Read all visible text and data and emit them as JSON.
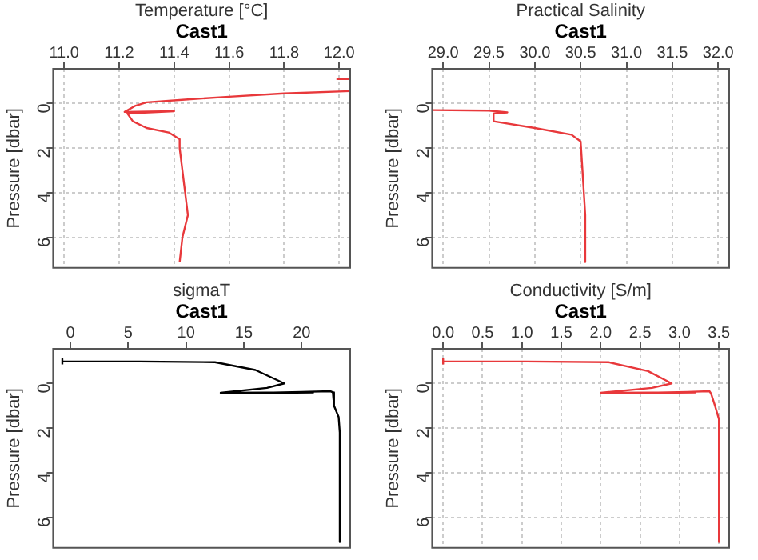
{
  "chart_data": [
    {
      "type": "line",
      "title": "Cast1",
      "xlabel": "Temperature [°C]",
      "ylabel": "Pressure [dbar]",
      "xlim": [
        10.96,
        12.04
      ],
      "xticks": [
        {
          "value": 11,
          "label": "11.0"
        },
        11.2,
        11.4,
        11.6,
        11.8,
        {
          "value": 12,
          "label": "12.0"
        }
      ],
      "ylim": [
        7.36,
        -1.55
      ],
      "yticks": [
        0,
        2,
        4,
        6
      ],
      "grid": true,
      "series": [
        {
          "color": "#e8383b",
          "x": [
            11.99,
            12.04
          ],
          "values": [
            -1.09,
            -1.09
          ]
        },
        {
          "color": "#e8383b",
          "x": [
            12.04,
            11.8,
            11.6,
            11.45,
            11.3,
            11.26,
            11.22,
            11.4,
            11.23,
            11.25,
            11.3,
            11.38,
            11.42,
            11.42,
            11.44,
            11.45,
            11.43,
            11.42
          ],
          "values": [
            -0.55,
            -0.45,
            -0.3,
            -0.18,
            -0.05,
            0.1,
            0.38,
            0.35,
            0.45,
            0.8,
            1.1,
            1.3,
            1.6,
            2,
            4,
            5,
            6,
            7.1
          ]
        }
      ]
    },
    {
      "type": "line",
      "title": "Cast1",
      "xlabel": "Practical Salinity",
      "ylabel": "Pressure [dbar]",
      "xlim": [
        28.88,
        32.12
      ],
      "xticks": [
        {
          "value": 29,
          "label": "29.0"
        },
        29.5,
        {
          "value": 30,
          "label": "30.0"
        },
        30.5,
        {
          "value": 31,
          "label": "31.0"
        },
        31.5,
        {
          "value": 32,
          "label": "32.0"
        }
      ],
      "ylim": [
        7.36,
        -1.55
      ],
      "yticks": [
        0,
        2,
        4,
        6
      ],
      "grid": true,
      "series": [
        {
          "color": "#e8383b",
          "x": [
            28.88,
            29.5,
            29.7,
            29.55,
            29.55,
            30.0,
            30.4,
            30.5,
            30.52,
            30.55,
            30.55
          ],
          "values": [
            0.3,
            0.32,
            0.4,
            0.45,
            0.8,
            1.1,
            1.4,
            1.7,
            3,
            5,
            7.1
          ]
        }
      ]
    },
    {
      "type": "line",
      "title": "Cast1",
      "xlabel": "sigmaT",
      "ylabel": "Pressure [dbar]",
      "xlim": [
        -1.5,
        24.2
      ],
      "xticks": [
        0,
        5,
        10,
        15,
        20
      ],
      "ylim": [
        7.36,
        -1.55
      ],
      "yticks": [
        0,
        2,
        4,
        6
      ],
      "grid": false,
      "series": [
        {
          "color": "#000000",
          "x": [
            -0.7,
            -0.7,
            -0.7,
            6,
            12.5,
            16,
            18.5,
            17,
            13,
            21,
            13.5,
            20,
            22.5,
            22.7,
            22.8,
            23.2,
            23.3,
            23.3
          ],
          "values": [
            -0.85,
            -1.1,
            -0.98,
            -0.98,
            -0.95,
            -0.6,
            0,
            0.2,
            0.42,
            0.4,
            0.45,
            0.38,
            0.35,
            0.4,
            1.0,
            1.5,
            2.2,
            7.1
          ]
        }
      ]
    },
    {
      "type": "line",
      "title": "Cast1",
      "xlabel": "Conductivity [S/m]",
      "ylabel": "Pressure [dbar]",
      "xlim": [
        -0.14,
        3.63
      ],
      "xticks": [
        {
          "value": 0,
          "label": "0.0"
        },
        0.5,
        {
          "value": 1,
          "label": "1.0"
        },
        1.5,
        {
          "value": 2,
          "label": "2.0"
        },
        2.5,
        {
          "value": 3,
          "label": "3.0"
        },
        3.5
      ],
      "ylim": [
        7.36,
        -1.55
      ],
      "yticks": [
        0,
        2,
        4,
        6
      ],
      "grid": true,
      "series": [
        {
          "color": "#e8383b",
          "x": [
            0,
            0,
            0,
            1.05,
            2.1,
            2.6,
            2.9,
            2.65,
            2.0,
            3.2,
            2.1,
            3.1,
            3.38,
            3.4,
            3.45,
            3.5,
            3.5
          ],
          "values": [
            -0.85,
            -1.1,
            -0.98,
            -0.98,
            -0.95,
            -0.55,
            0,
            0.2,
            0.42,
            0.4,
            0.45,
            0.38,
            0.35,
            0.45,
            1.0,
            1.6,
            7.1
          ]
        }
      ]
    }
  ]
}
